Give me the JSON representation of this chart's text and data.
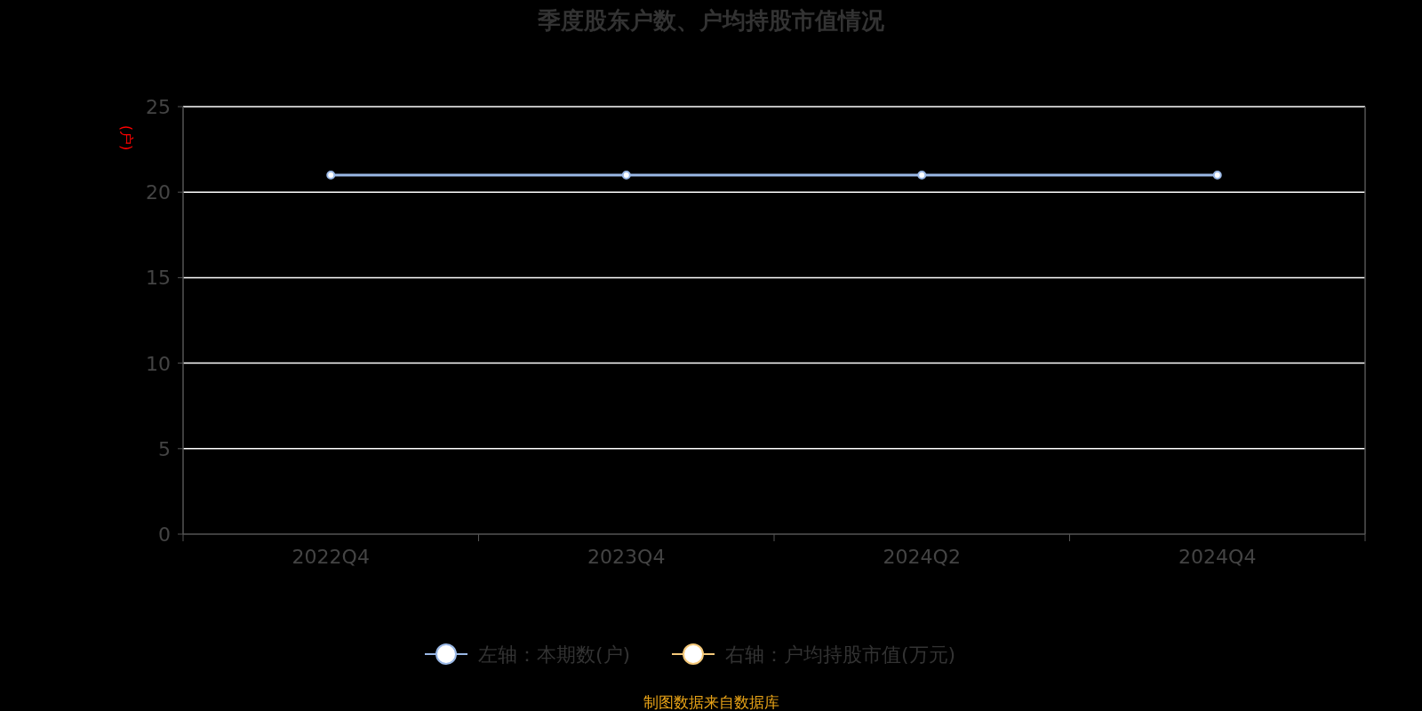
{
  "chart_data": {
    "type": "line",
    "title": "季度股东户数、户均持股市值情况",
    "ylabel": "(户)",
    "categories": [
      "2022Q4",
      "2023Q4",
      "2024Q2",
      "2024Q4"
    ],
    "series": [
      {
        "name": "左轴：本期数(户)",
        "color": "#9ab8e6",
        "values": [
          21,
          21,
          21,
          21
        ]
      },
      {
        "name": "右轴：户均持股市值(万元)",
        "color": "#f5c97a",
        "values": [
          null,
          null,
          null,
          null
        ]
      }
    ],
    "ylim": [
      0,
      25
    ],
    "yticks": [
      0,
      5,
      10,
      15,
      20,
      25
    ],
    "grid": "y",
    "legend": "bottom",
    "marker": "circle",
    "annotations": [
      "制图数据来自数据库"
    ]
  }
}
